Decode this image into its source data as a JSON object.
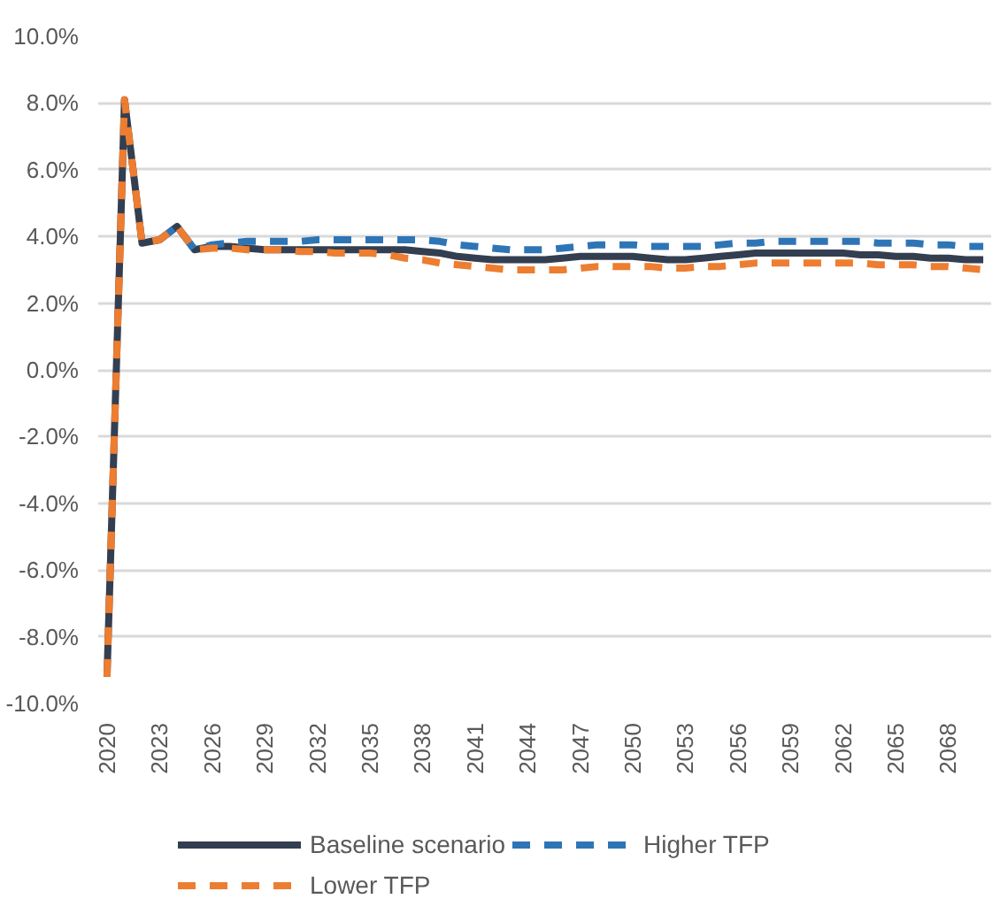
{
  "chart_data": {
    "type": "line",
    "categories": [
      "2020",
      null,
      null,
      "2023",
      null,
      null,
      "2026",
      null,
      null,
      "2029",
      null,
      null,
      "2032",
      null,
      null,
      "2035",
      null,
      null,
      "2038",
      null,
      null,
      "2041",
      null,
      null,
      "2044",
      null,
      null,
      "2047",
      null,
      null,
      "2050",
      null,
      null,
      "2053",
      null,
      null,
      "2056",
      null,
      null,
      "2059",
      null,
      null,
      "2062",
      null,
      null,
      "2065",
      null,
      null,
      "2068",
      null,
      null
    ],
    "series": [
      {
        "name": "Baseline scenario",
        "color": "#333f50",
        "line_style": "solid",
        "values": [
          -9.2,
          8.1,
          3.8,
          3.9,
          4.3,
          3.6,
          3.7,
          3.7,
          3.65,
          3.6,
          3.6,
          3.6,
          3.6,
          3.6,
          3.6,
          3.6,
          3.6,
          3.6,
          3.55,
          3.5,
          3.4,
          3.35,
          3.3,
          3.3,
          3.3,
          3.3,
          3.35,
          3.4,
          3.4,
          3.4,
          3.4,
          3.35,
          3.3,
          3.3,
          3.35,
          3.4,
          3.45,
          3.5,
          3.5,
          3.5,
          3.5,
          3.5,
          3.5,
          3.45,
          3.45,
          3.4,
          3.4,
          3.35,
          3.35,
          3.3,
          3.3
        ]
      },
      {
        "name": "Higher TFP",
        "color": "#2e75b6",
        "line_style": "dashed",
        "values": [
          null,
          null,
          null,
          3.9,
          4.3,
          3.6,
          3.75,
          3.8,
          3.85,
          3.85,
          3.85,
          3.85,
          3.9,
          3.9,
          3.9,
          3.9,
          3.9,
          3.9,
          3.9,
          3.85,
          3.75,
          3.7,
          3.65,
          3.6,
          3.6,
          3.6,
          3.65,
          3.7,
          3.75,
          3.75,
          3.75,
          3.7,
          3.7,
          3.7,
          3.7,
          3.75,
          3.8,
          3.8,
          3.85,
          3.85,
          3.85,
          3.85,
          3.85,
          3.85,
          3.8,
          3.8,
          3.8,
          3.75,
          3.75,
          3.7,
          3.7
        ]
      },
      {
        "name": "Lower TFP",
        "color": "#ed7d31",
        "line_style": "dashed",
        "values": [
          -9.2,
          8.1,
          3.8,
          3.9,
          4.3,
          3.6,
          3.65,
          3.65,
          3.6,
          3.6,
          3.6,
          3.55,
          3.55,
          3.5,
          3.5,
          3.5,
          3.45,
          3.35,
          3.3,
          3.2,
          3.15,
          3.1,
          3.05,
          3.0,
          3.0,
          3.0,
          3.0,
          3.05,
          3.1,
          3.1,
          3.1,
          3.1,
          3.05,
          3.05,
          3.1,
          3.1,
          3.15,
          3.2,
          3.2,
          3.2,
          3.2,
          3.2,
          3.2,
          3.2,
          3.15,
          3.15,
          3.15,
          3.1,
          3.1,
          3.05,
          3.0
        ]
      }
    ],
    "ylim": [
      -10,
      10
    ],
    "yticks": [
      {
        "value": -10,
        "label": "-10.0%"
      },
      {
        "value": -8,
        "label": "-8.0%"
      },
      {
        "value": -6,
        "label": "-6.0%"
      },
      {
        "value": -4,
        "label": "-4.0%"
      },
      {
        "value": -2,
        "label": "-2.0%"
      },
      {
        "value": 0,
        "label": "0.0%"
      },
      {
        "value": 2,
        "label": "2.0%"
      },
      {
        "value": 4,
        "label": "4.0%"
      },
      {
        "value": 6,
        "label": "6.0%"
      },
      {
        "value": 8,
        "label": "8.0%"
      },
      {
        "value": 10,
        "label": "10.0%"
      }
    ],
    "grid": "y",
    "legend": "bottom"
  }
}
